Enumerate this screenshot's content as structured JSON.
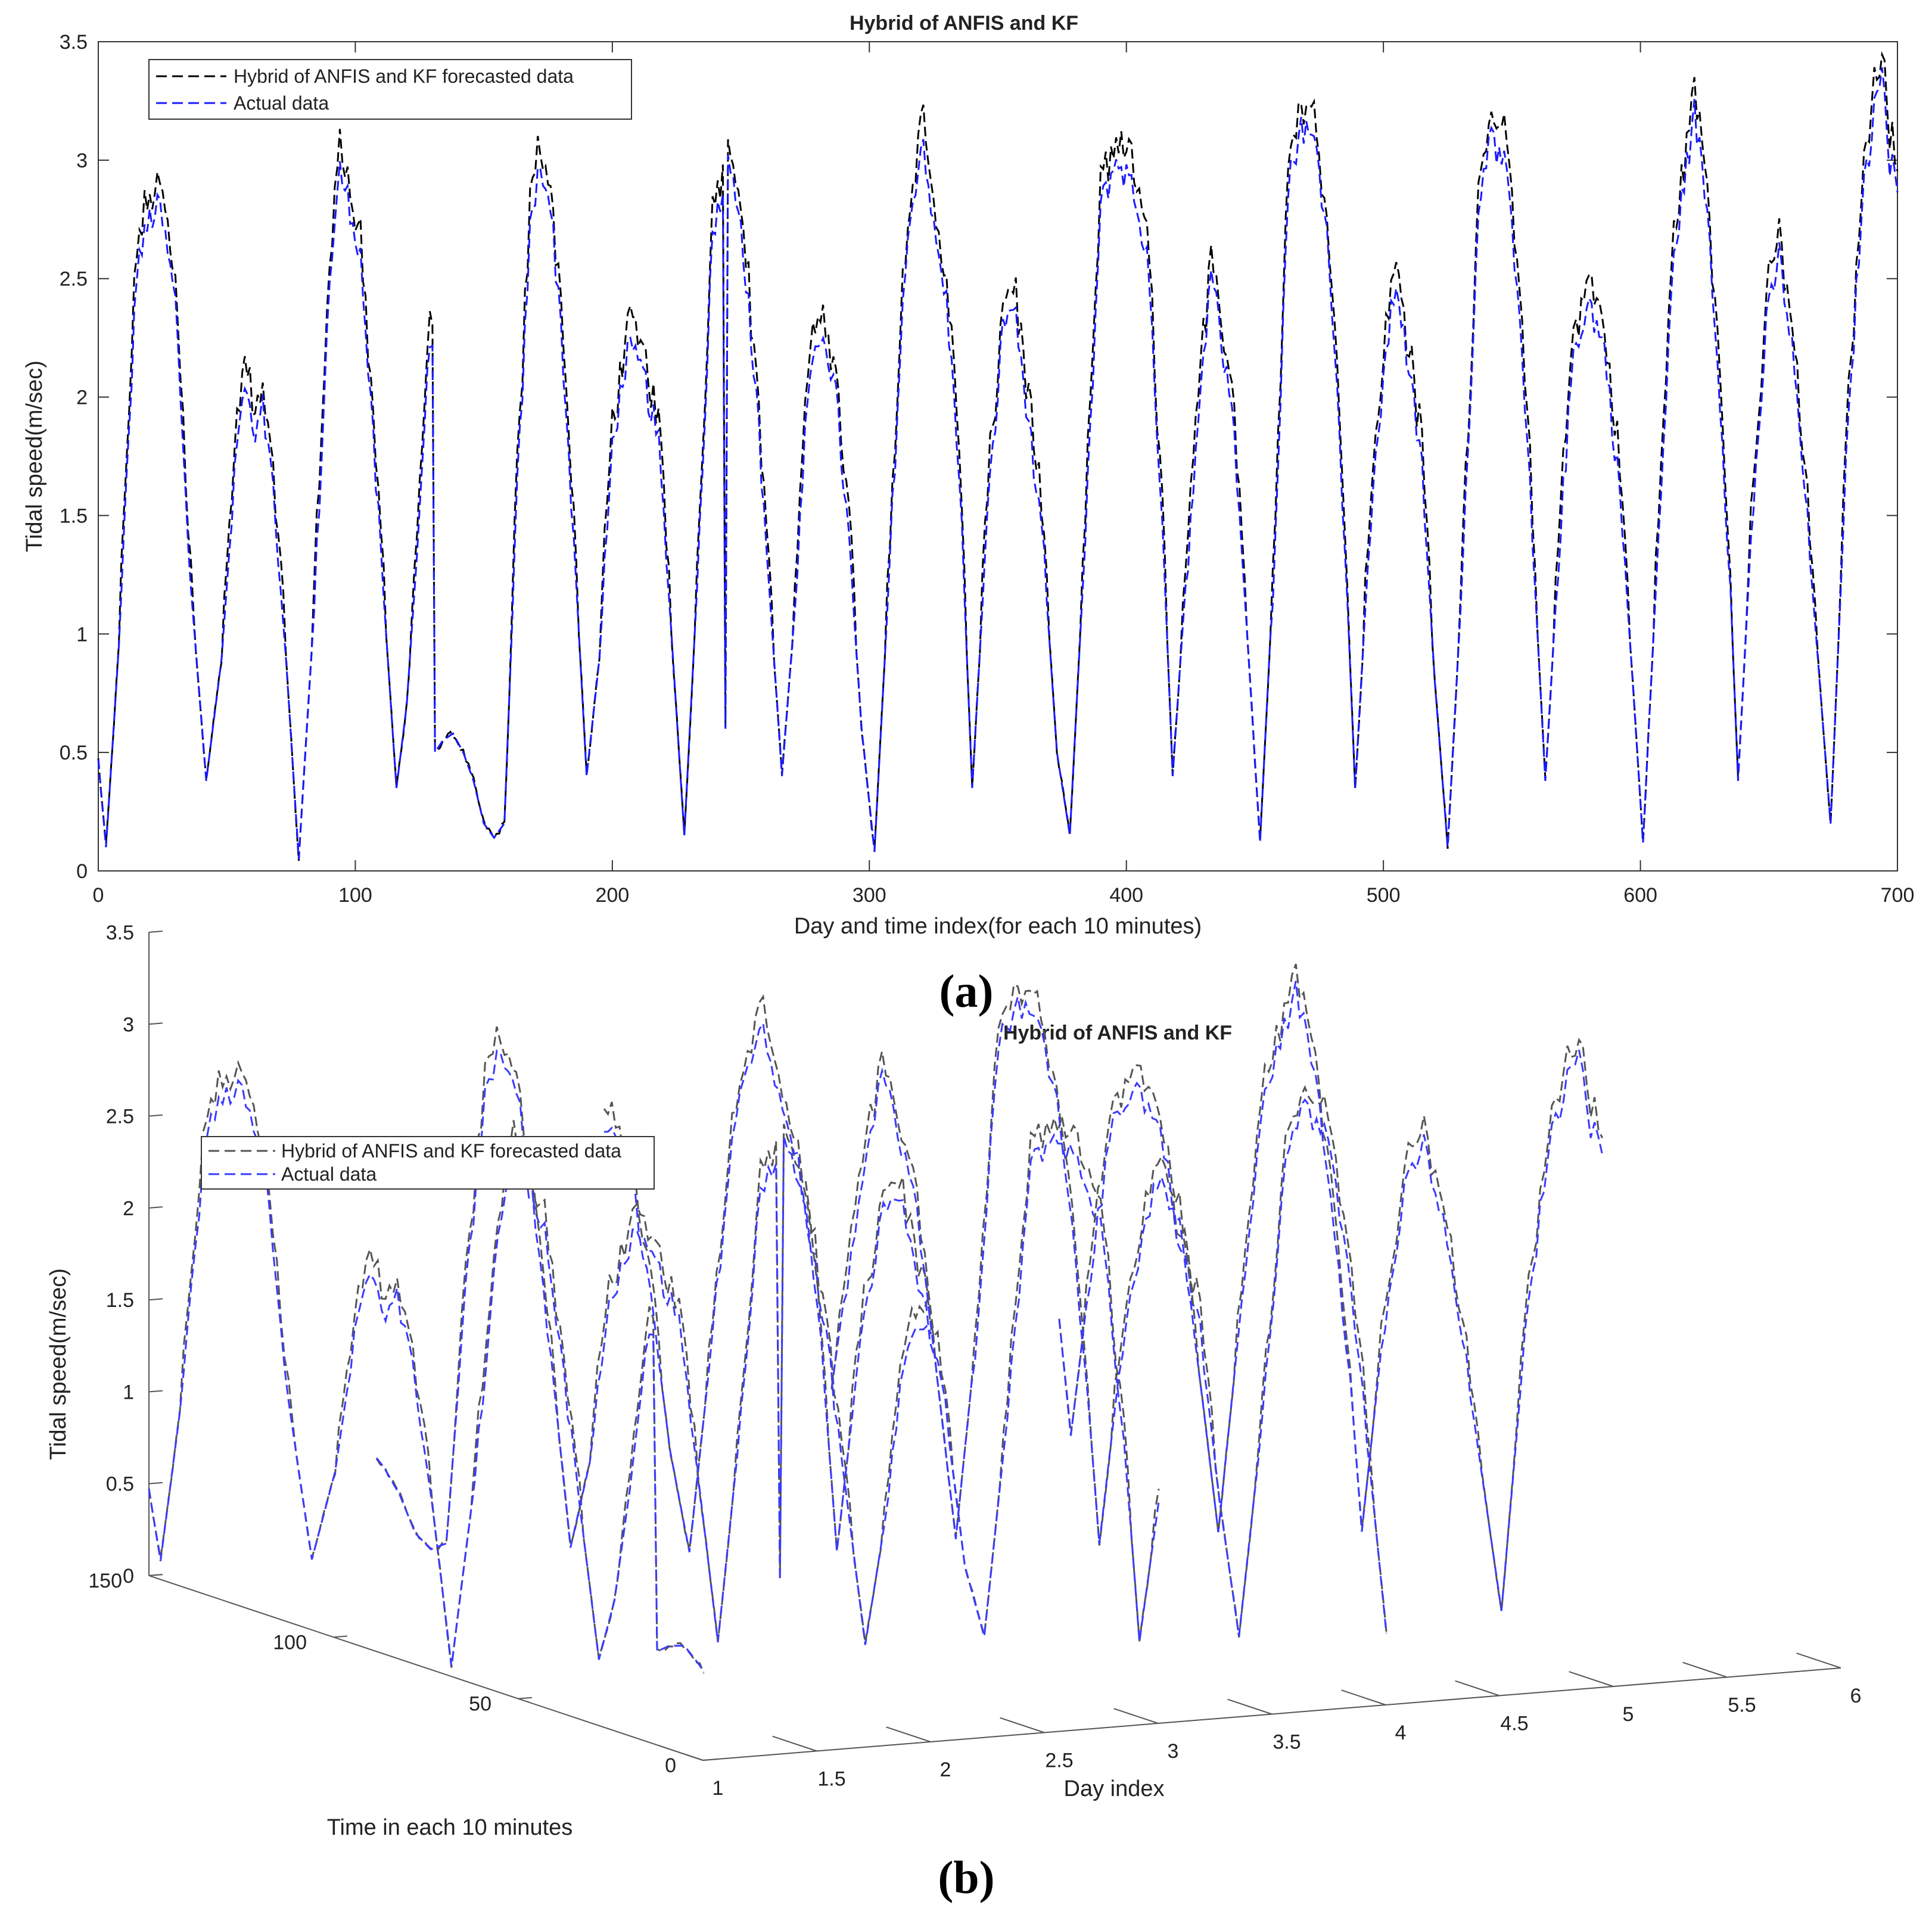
{
  "chart_data": [
    {
      "id": "a",
      "type": "line",
      "title": "Hybrid of ANFIS and KF",
      "xlabel": "Day and time index(for each 10 minutes)",
      "ylabel": "Tidal speed(m/sec)",
      "xlim": [
        0,
        700
      ],
      "ylim": [
        0,
        3.5
      ],
      "xticks": [
        "0",
        "100",
        "200",
        "300",
        "400",
        "500",
        "600",
        "700"
      ],
      "yticks": [
        "0",
        "0.5",
        "1",
        "1.5",
        "2",
        "2.5",
        "3",
        "3.5"
      ],
      "caption": "(a)",
      "legend": [
        "Hybrid of ANFIS and KF forecasted data",
        "Actual data"
      ],
      "series": [
        {
          "name": "Hybrid of ANFIS and KF forecasted data",
          "color": "#000000"
        },
        {
          "name": "Actual data",
          "color": "#1a1aff"
        }
      ],
      "actual_keypoints": [
        [
          0,
          0.47
        ],
        [
          3,
          0.1
        ],
        [
          8,
          0.95
        ],
        [
          15,
          2.55
        ],
        [
          20,
          2.75
        ],
        [
          24,
          2.8
        ],
        [
          30,
          2.4
        ],
        [
          36,
          1.2
        ],
        [
          42,
          0.38
        ],
        [
          48,
          0.9
        ],
        [
          54,
          1.8
        ],
        [
          57,
          2.05
        ],
        [
          61,
          1.8
        ],
        [
          64,
          1.95
        ],
        [
          68,
          1.6
        ],
        [
          73,
          0.9
        ],
        [
          78,
          0.05
        ],
        [
          84,
          1.1
        ],
        [
          90,
          2.5
        ],
        [
          94,
          2.95
        ],
        [
          98,
          2.8
        ],
        [
          102,
          2.6
        ],
        [
          107,
          1.8
        ],
        [
          112,
          1.0
        ],
        [
          116,
          0.35
        ],
        [
          120,
          0.7
        ],
        [
          125,
          1.5
        ],
        [
          128,
          2.1
        ],
        [
          130,
          2.2
        ],
        [
          131,
          0.5
        ],
        [
          134,
          0.55
        ],
        [
          138,
          0.58
        ],
        [
          142,
          0.5
        ],
        [
          146,
          0.38
        ],
        [
          150,
          0.2
        ],
        [
          154,
          0.14
        ],
        [
          158,
          0.2
        ],
        [
          163,
          1.6
        ],
        [
          168,
          2.7
        ],
        [
          172,
          3.0
        ],
        [
          176,
          2.8
        ],
        [
          180,
          2.3
        ],
        [
          185,
          1.4
        ],
        [
          190,
          0.4
        ],
        [
          195,
          0.9
        ],
        [
          200,
          1.8
        ],
        [
          206,
          2.2
        ],
        [
          212,
          2.1
        ],
        [
          218,
          1.8
        ],
        [
          223,
          1.0
        ],
        [
          228,
          0.15
        ],
        [
          233,
          1.2
        ],
        [
          239,
          2.7
        ],
        [
          243,
          2.9
        ],
        [
          244,
          0.6
        ],
        [
          245,
          3.0
        ],
        [
          250,
          2.75
        ],
        [
          256,
          2.0
        ],
        [
          261,
          1.2
        ],
        [
          266,
          0.4
        ],
        [
          271,
          1.1
        ],
        [
          276,
          2.0
        ],
        [
          282,
          2.3
        ],
        [
          287,
          2.0
        ],
        [
          292,
          1.4
        ],
        [
          297,
          0.6
        ],
        [
          302,
          0.08
        ],
        [
          307,
          1.1
        ],
        [
          313,
          2.4
        ],
        [
          317,
          2.85
        ],
        [
          321,
          3.1
        ],
        [
          325,
          2.7
        ],
        [
          330,
          2.4
        ],
        [
          335,
          1.7
        ],
        [
          340,
          0.35
        ],
        [
          346,
          1.5
        ],
        [
          352,
          2.3
        ],
        [
          356,
          2.4
        ],
        [
          362,
          1.9
        ],
        [
          368,
          1.3
        ],
        [
          373,
          0.5
        ],
        [
          378,
          0.15
        ],
        [
          384,
          1.4
        ],
        [
          390,
          2.8
        ],
        [
          396,
          3.0
        ],
        [
          402,
          2.9
        ],
        [
          408,
          2.6
        ],
        [
          414,
          1.5
        ],
        [
          418,
          0.4
        ],
        [
          423,
          1.2
        ],
        [
          429,
          2.0
        ],
        [
          433,
          2.6
        ],
        [
          437,
          2.2
        ],
        [
          441,
          2.0
        ],
        [
          447,
          1.0
        ],
        [
          452,
          0.12
        ],
        [
          457,
          1.2
        ],
        [
          463,
          2.9
        ],
        [
          468,
          3.15
        ],
        [
          474,
          3.05
        ],
        [
          479,
          2.6
        ],
        [
          485,
          1.4
        ],
        [
          489,
          0.35
        ],
        [
          494,
          1.3
        ],
        [
          500,
          2.1
        ],
        [
          505,
          2.5
        ],
        [
          510,
          2.1
        ],
        [
          515,
          1.7
        ],
        [
          520,
          0.8
        ],
        [
          525,
          0.1
        ],
        [
          531,
          1.3
        ],
        [
          537,
          2.8
        ],
        [
          541,
          3.1
        ],
        [
          547,
          3.0
        ],
        [
          553,
          2.4
        ],
        [
          558,
          1.4
        ],
        [
          563,
          0.38
        ],
        [
          568,
          1.3
        ],
        [
          574,
          2.2
        ],
        [
          580,
          2.4
        ],
        [
          586,
          2.2
        ],
        [
          592,
          1.6
        ],
        [
          597,
          0.8
        ],
        [
          601,
          0.12
        ],
        [
          607,
          1.4
        ],
        [
          613,
          2.6
        ],
        [
          617,
          2.9
        ],
        [
          621,
          3.2
        ],
        [
          626,
          2.8
        ],
        [
          631,
          2.0
        ],
        [
          635,
          1.2
        ],
        [
          638,
          0.38
        ],
        [
          643,
          1.4
        ],
        [
          649,
          2.3
        ],
        [
          654,
          2.6
        ],
        [
          659,
          2.2
        ],
        [
          664,
          1.6
        ],
        [
          669,
          0.9
        ],
        [
          674,
          0.2
        ],
        [
          680,
          1.7
        ],
        [
          686,
          2.8
        ],
        [
          691,
          3.2
        ],
        [
          694,
          3.45
        ],
        [
          697,
          3.0
        ],
        [
          700,
          2.9
        ]
      ]
    },
    {
      "id": "b",
      "type": "line",
      "subtype": "3d-line",
      "title": "Hybrid of ANFIS and KF",
      "xlabel": "Day index",
      "ylabel": "Tidal speed(m/sec)",
      "zlabel": "Time in each 10 minutes",
      "xlim": [
        1,
        6
      ],
      "ylim": [
        0,
        3.5
      ],
      "timelim": [
        0,
        150
      ],
      "xticks": [
        "1",
        "1.5",
        "2",
        "2.5",
        "3",
        "3.5",
        "4",
        "4.5",
        "5",
        "5.5",
        "6"
      ],
      "yticks": [
        "0",
        "0.5",
        "1",
        "1.5",
        "2",
        "2.5",
        "3",
        "3.5"
      ],
      "timeticks": [
        "0",
        "50",
        "100",
        "150"
      ],
      "caption": "(b)",
      "legend": [
        "Hybrid of ANFIS and KF forecasted data",
        "Actual data"
      ],
      "series": [
        {
          "name": "Hybrid of ANFIS and KF forecasted data",
          "color": "#555555"
        },
        {
          "name": "Actual data",
          "color": "#3a3aff"
        }
      ]
    }
  ]
}
